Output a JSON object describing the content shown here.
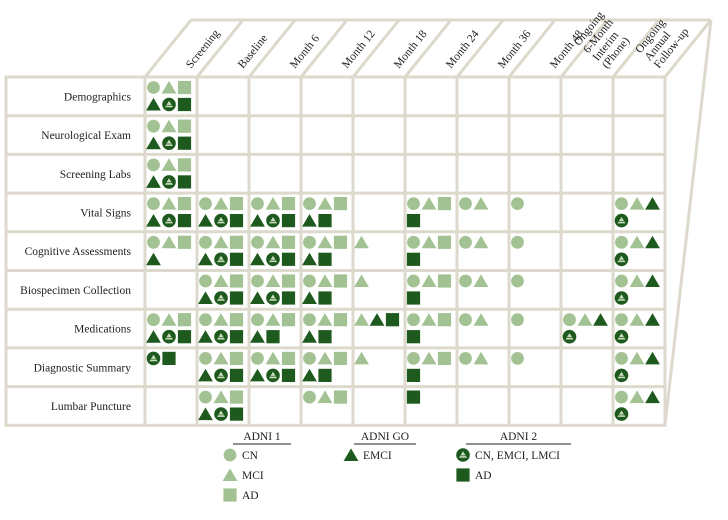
{
  "colors": {
    "grid": "#ddd9cc",
    "light_green": "#a3c293",
    "dark_green": "#1e5a1e",
    "badge_icon": "#c9ddbc"
  },
  "columns": [
    "Screening",
    "Baseline",
    "Month 6",
    "Month 12",
    "Month 18",
    "Month 24",
    "Month 36",
    "Month 48",
    "Ongoing 6-Month Interim (Phone)",
    "Ongoing Annual Follow-up"
  ],
  "rows": [
    {
      "label": "Demographics",
      "cells": [
        [
          [
            "CN",
            "MCI",
            "AD"
          ],
          [
            "EMCI",
            "ADNI2",
            "ADNI2AD"
          ]
        ]
      ]
    },
    {
      "label": "Neurological Exam",
      "cells": [
        [
          [
            "CN",
            "MCI",
            "AD"
          ],
          [
            "EMCI",
            "ADNI2",
            "ADNI2AD"
          ]
        ]
      ]
    },
    {
      "label": "Screening Labs",
      "cells": [
        [
          [
            "CN",
            "MCI",
            "AD"
          ],
          [
            "EMCI",
            "ADNI2",
            "ADNI2AD"
          ]
        ]
      ]
    },
    {
      "label": "Vital Signs",
      "cells": [
        [
          [
            "CN",
            "MCI",
            "AD"
          ],
          [
            "EMCI",
            "ADNI2",
            "ADNI2AD"
          ]
        ],
        [
          [
            "CN",
            "MCI",
            "AD"
          ],
          [
            "EMCI",
            "ADNI2",
            "ADNI2AD"
          ]
        ],
        [
          [
            "CN",
            "MCI",
            "AD"
          ],
          [
            "EMCI",
            "ADNI2",
            "ADNI2AD"
          ]
        ],
        [
          [
            "CN",
            "MCI",
            "AD"
          ],
          [
            "EMCI",
            "ADNI2AD"
          ]
        ],
        [],
        [
          [
            "CN",
            "MCI",
            "AD"
          ],
          [
            "ADNI2AD"
          ]
        ],
        [
          [
            "CN",
            "MCI"
          ]
        ],
        [
          [
            "CN"
          ]
        ],
        [],
        [
          [
            "CN",
            "MCI",
            "EMCI"
          ],
          [
            "ADNI2"
          ]
        ]
      ]
    },
    {
      "label": "Cognitive Assessments",
      "cells": [
        [
          [
            "CN",
            "MCI",
            "AD"
          ],
          [
            "EMCI"
          ]
        ],
        [
          [
            "CN",
            "MCI",
            "AD"
          ],
          [
            "EMCI",
            "ADNI2",
            "ADNI2AD"
          ]
        ],
        [
          [
            "CN",
            "MCI",
            "AD"
          ],
          [
            "EMCI",
            "ADNI2",
            "ADNI2AD"
          ]
        ],
        [
          [
            "CN",
            "MCI",
            "AD"
          ],
          [
            "EMCI",
            "ADNI2AD"
          ]
        ],
        [
          [
            "MCI"
          ]
        ],
        [
          [
            "CN",
            "MCI",
            "AD"
          ],
          [
            "ADNI2AD"
          ]
        ],
        [
          [
            "CN",
            "MCI"
          ]
        ],
        [
          [
            "CN"
          ]
        ],
        [],
        [
          [
            "CN",
            "MCI",
            "EMCI"
          ],
          [
            "ADNI2"
          ]
        ]
      ]
    },
    {
      "label": "Biospecimen Collection",
      "cells": [
        [],
        [
          [
            "CN",
            "MCI",
            "AD"
          ],
          [
            "EMCI",
            "ADNI2",
            "ADNI2AD"
          ]
        ],
        [
          [
            "CN",
            "MCI",
            "AD"
          ],
          [
            "EMCI",
            "ADNI2",
            "ADNI2AD"
          ]
        ],
        [
          [
            "CN",
            "MCI",
            "AD"
          ],
          [
            "EMCI",
            "ADNI2AD"
          ]
        ],
        [
          [
            "MCI"
          ]
        ],
        [
          [
            "CN",
            "MCI",
            "AD"
          ],
          [
            "ADNI2AD"
          ]
        ],
        [
          [
            "CN",
            "MCI"
          ]
        ],
        [
          [
            "CN"
          ]
        ],
        [],
        [
          [
            "CN",
            "MCI",
            "EMCI"
          ],
          [
            "ADNI2"
          ]
        ]
      ]
    },
    {
      "label": "Medications",
      "cells": [
        [
          [
            "CN",
            "MCI",
            "AD"
          ],
          [
            "EMCI",
            "ADNI2",
            "ADNI2AD"
          ]
        ],
        [
          [
            "CN",
            "MCI",
            "AD"
          ],
          [
            "EMCI",
            "ADNI2",
            "ADNI2AD"
          ]
        ],
        [
          [
            "CN",
            "MCI",
            "AD"
          ],
          [
            "EMCI",
            "ADNI2AD"
          ]
        ],
        [
          [
            "CN",
            "MCI",
            "AD"
          ],
          [
            "EMCI",
            "ADNI2AD"
          ]
        ],
        [
          [
            "MCI",
            "EMCI",
            "ADNI2AD"
          ]
        ],
        [
          [
            "CN",
            "MCI",
            "AD"
          ],
          [
            "ADNI2AD"
          ]
        ],
        [
          [
            "CN",
            "MCI"
          ]
        ],
        [
          [
            "CN"
          ]
        ],
        [
          [
            "CN",
            "MCI",
            "EMCI"
          ],
          [
            "ADNI2"
          ]
        ],
        [
          [
            "CN",
            "MCI",
            "EMCI"
          ],
          [
            "ADNI2"
          ]
        ]
      ]
    },
    {
      "label": "Diagnostic Summary",
      "cells": [
        [
          [
            "ADNI2",
            "ADNI2AD"
          ]
        ],
        [
          [
            "CN",
            "MCI",
            "AD"
          ],
          [
            "EMCI",
            "ADNI2",
            "ADNI2AD"
          ]
        ],
        [
          [
            "CN",
            "MCI",
            "AD"
          ],
          [
            "EMCI",
            "ADNI2",
            "ADNI2AD"
          ]
        ],
        [
          [
            "CN",
            "MCI",
            "AD"
          ],
          [
            "EMCI",
            "ADNI2AD"
          ]
        ],
        [
          [
            "MCI"
          ]
        ],
        [
          [
            "CN",
            "MCI",
            "AD"
          ],
          [
            "ADNI2AD"
          ]
        ],
        [
          [
            "CN",
            "MCI"
          ]
        ],
        [
          [
            "CN"
          ]
        ],
        [],
        [
          [
            "CN",
            "MCI",
            "EMCI"
          ],
          [
            "ADNI2"
          ]
        ]
      ]
    },
    {
      "label": "Lumbar Puncture",
      "cells": [
        [],
        [
          [
            "CN",
            "MCI",
            "AD"
          ],
          [
            "EMCI",
            "ADNI2",
            "ADNI2AD"
          ]
        ],
        [],
        [
          [
            "CN",
            "MCI",
            "AD"
          ]
        ],
        [],
        [
          [
            "ADNI2AD"
          ]
        ],
        [],
        [],
        [],
        [
          [
            "CN",
            "MCI",
            "EMCI"
          ],
          [
            "ADNI2"
          ]
        ]
      ]
    }
  ],
  "legend": {
    "groups": [
      {
        "title": "ADNI 1",
        "items": [
          {
            "symbol": "CN",
            "label": "CN"
          },
          {
            "symbol": "MCI",
            "label": "MCI"
          },
          {
            "symbol": "AD",
            "label": "AD"
          }
        ]
      },
      {
        "title": "ADNI GO",
        "items": [
          {
            "symbol": "EMCI",
            "label": "EMCI"
          }
        ]
      },
      {
        "title": "ADNI 2",
        "items": [
          {
            "symbol": "ADNI2",
            "label": "CN, EMCI, LMCI"
          },
          {
            "symbol": "ADNI2AD",
            "label": "AD"
          }
        ]
      }
    ]
  }
}
